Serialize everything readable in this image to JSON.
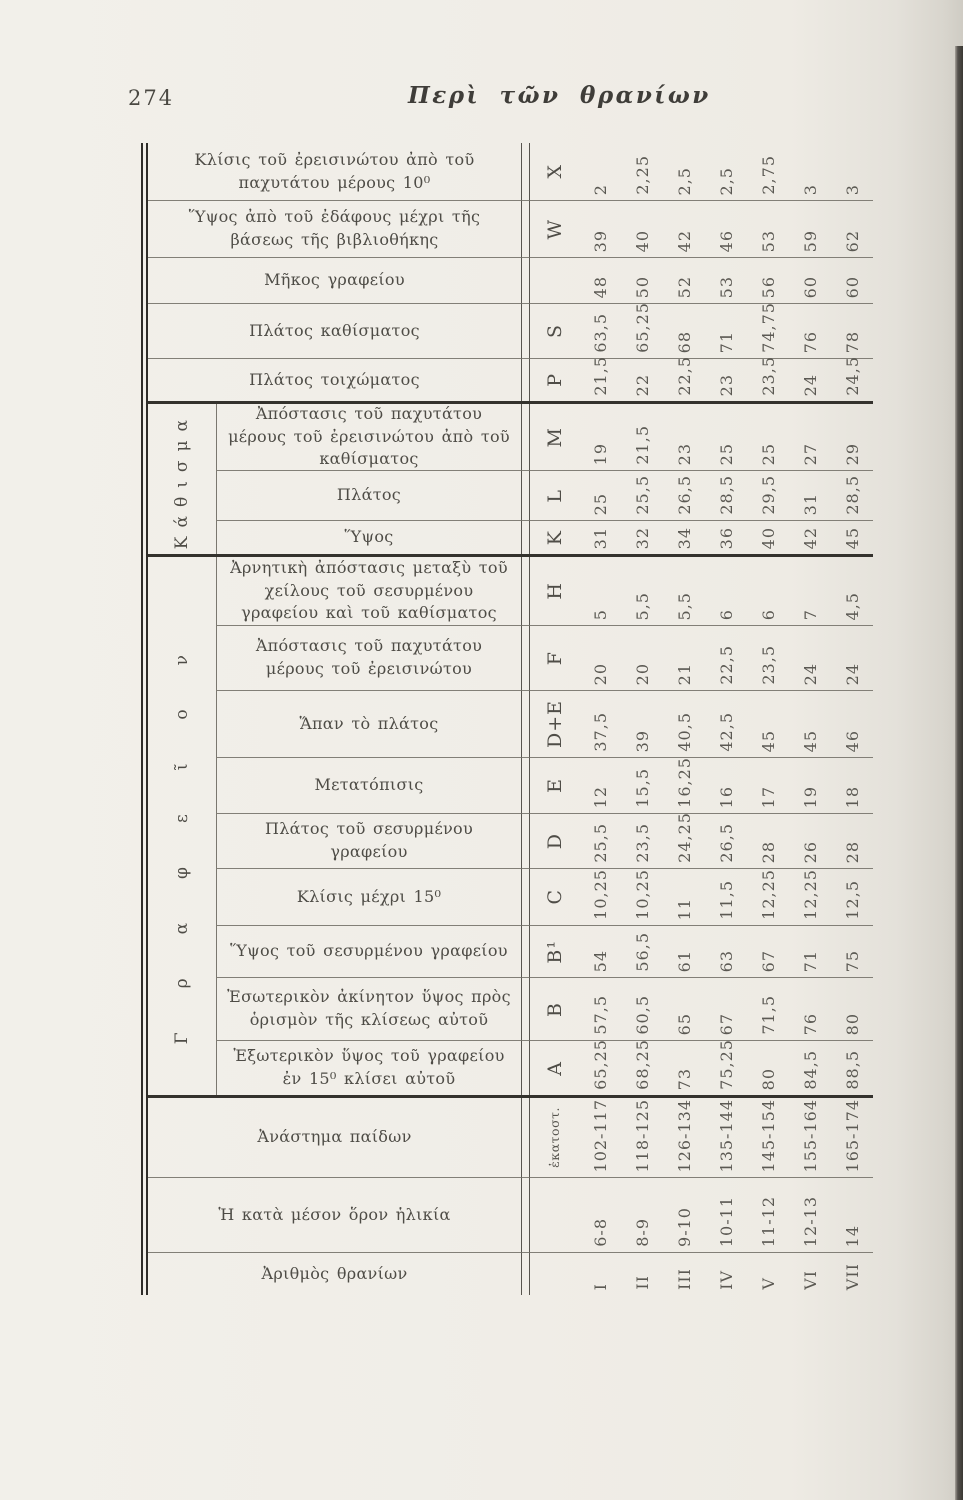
{
  "page": {
    "number": "274",
    "running_title": "Περὶ τῶν θρανίων"
  },
  "table": {
    "groups": [
      {
        "id": "kathisma",
        "label": "Κάθισμα"
      },
      {
        "id": "grapheion",
        "label": "Γραφεῖον"
      }
    ],
    "rows": [
      {
        "group": "",
        "label": "Κλίσις τοῦ ἐρεισινώτου ἀπὸ τοῦ παχυτάτου μέρους 10⁰",
        "letter": "X",
        "values": [
          "2",
          "2,25",
          "2,5",
          "2,5",
          "2,75",
          "3",
          "3"
        ]
      },
      {
        "group": "",
        "label": "Ὕψος ἀπὸ τοῦ ἐδάφους μέχρι τῆς βάσεως τῆς βιβλιοθήκης",
        "letter": "W",
        "values": [
          "39",
          "40",
          "42",
          "46",
          "53",
          "59",
          "62"
        ]
      },
      {
        "group": "",
        "label": "Μῆκος γραφείου",
        "letter": "",
        "values": [
          "48",
          "50",
          "52",
          "53",
          "56",
          "60",
          "60"
        ]
      },
      {
        "group": "",
        "label": "Πλάτος καθίσματος",
        "letter": "S",
        "values": [
          "63,5",
          "65,25",
          "68",
          "71",
          "74,75",
          "76",
          "78"
        ]
      },
      {
        "group": "",
        "label": "Πλάτος τοιχώματος",
        "letter": "P",
        "values": [
          "21,5",
          "22",
          "22,5",
          "23",
          "23,5",
          "24",
          "24,5"
        ]
      },
      {
        "group": "kathisma",
        "label": "Ἀπόστασις τοῦ παχυτάτου μέρους τοῦ ἐρεισινώτου ἀπὸ τοῦ καθίσματος",
        "letter": "M",
        "values": [
          "19",
          "21,5",
          "23",
          "25",
          "25",
          "27",
          "29"
        ]
      },
      {
        "group": "kathisma",
        "label": "Πλάτος",
        "letter": "L",
        "values": [
          "25",
          "25,5",
          "26,5",
          "28,5",
          "29,5",
          "31",
          "28,5"
        ]
      },
      {
        "group": "kathisma",
        "label": "Ὕψος",
        "letter": "K",
        "values": [
          "31",
          "32",
          "34",
          "36",
          "40",
          "42",
          "45"
        ]
      },
      {
        "group": "grapheion",
        "label": "Ἀρνητικὴ ἀπόστασις μεταξὺ τοῦ χείλους τοῦ σεσυρμένου γραφείου καὶ τοῦ καθίσματος",
        "letter": "H",
        "values": [
          "5",
          "5,5",
          "5,5",
          "6",
          "6",
          "7",
          "4,5"
        ]
      },
      {
        "group": "grapheion",
        "label": "Ἀπόστασις τοῦ παχυτάτου μέρους τοῦ ἐρεισινώτου",
        "letter": "F",
        "values": [
          "20",
          "20",
          "21",
          "22,5",
          "23,5",
          "24",
          "24"
        ]
      },
      {
        "group": "grapheion",
        "label": "Ἅπαν τὸ πλάτος",
        "letter": "D+E",
        "values": [
          "37,5",
          "39",
          "40,5",
          "42,5",
          "45",
          "45",
          "46"
        ]
      },
      {
        "group": "grapheion",
        "label": "Μετατόπισις",
        "letter": "E",
        "values": [
          "12",
          "15,5",
          "16,25",
          "16",
          "17",
          "19",
          "18"
        ]
      },
      {
        "group": "grapheion",
        "label": "Πλάτος τοῦ σεσυρμένου γραφείου",
        "letter": "D",
        "values": [
          "25,5",
          "23,5",
          "24,25",
          "26,5",
          "28",
          "26",
          "28"
        ]
      },
      {
        "group": "grapheion",
        "label": "Κλίσις μέχρι 15⁰",
        "letter": "C",
        "values": [
          "10,25",
          "10,25",
          "11",
          "11,5",
          "12,25",
          "12,25",
          "12,5"
        ]
      },
      {
        "group": "grapheion",
        "label": "Ὕψος τοῦ σεσυρμένου γραφείου",
        "letter": "B¹",
        "values": [
          "54",
          "56,5",
          "61",
          "63",
          "67",
          "71",
          "75"
        ]
      },
      {
        "group": "grapheion",
        "label": "Ἐσωτερικὸν ἀκίνητον ὕψος πρὸς ὁρισμὸν τῆς κλίσεως αὐτοῦ",
        "letter": "B",
        "values": [
          "57,5",
          "60,5",
          "65",
          "67",
          "71,5",
          "76",
          "80"
        ]
      },
      {
        "group": "grapheion",
        "label": "Ἐξωτερικὸν ὕψος τοῦ γραφείου ἐν 15⁰ κλίσει αὐτοῦ",
        "letter": "A",
        "values": [
          "65,25",
          "68,25",
          "73",
          "75,25",
          "80",
          "84,5",
          "88,5"
        ]
      },
      {
        "group": "",
        "label": "Ἀνάστημα παίδων",
        "letter": "ἑκατοστ.",
        "values": [
          "102-117",
          "118-125",
          "126-134",
          "135-144",
          "145-154",
          "155-164",
          "165-174"
        ]
      },
      {
        "group": "",
        "label": "Ἡ κατὰ μέσον ὅρον ἡλικία",
        "letter": "",
        "values": [
          "6-8",
          "8-9",
          "9-10",
          "10-11",
          "11-12",
          "12-13",
          "14"
        ]
      },
      {
        "group": "",
        "label": "Ἀριθμὸς θρανίων",
        "letter": "",
        "values": [
          "I",
          "II",
          "III",
          "IV",
          "V",
          "VI",
          "VII"
        ]
      }
    ]
  }
}
